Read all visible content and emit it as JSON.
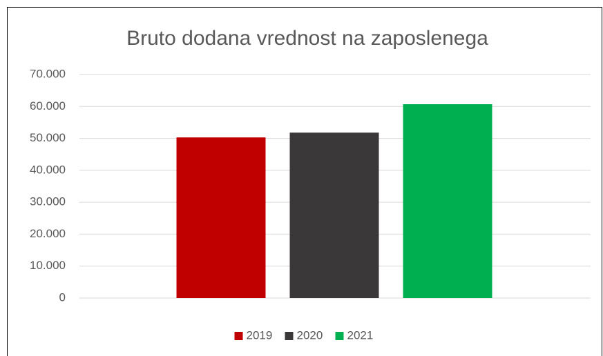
{
  "chart_data": {
    "type": "bar",
    "title": "Bruto dodana vrednost na zaposlenega",
    "categories": [
      null
    ],
    "series": [
      {
        "name": "2019",
        "color": "#c00000",
        "values": [
          50300
        ]
      },
      {
        "name": "2020",
        "color": "#3a3838",
        "values": [
          51800
        ]
      },
      {
        "name": "2021",
        "color": "#00b050",
        "values": [
          60700
        ]
      }
    ],
    "ylim": [
      0,
      70000
    ],
    "yticks": [
      0,
      {
        "value": 10000,
        "label": "10.000"
      },
      {
        "value": 20000,
        "label": "20.000"
      },
      {
        "value": 30000,
        "label": "30.000"
      },
      {
        "value": 40000,
        "label": "40.000"
      },
      {
        "value": 50000,
        "label": "50.000"
      },
      {
        "value": 60000,
        "label": "60.000"
      },
      {
        "value": 70000,
        "label": "70.000"
      }
    ],
    "grid": true,
    "legend": "bottom"
  }
}
